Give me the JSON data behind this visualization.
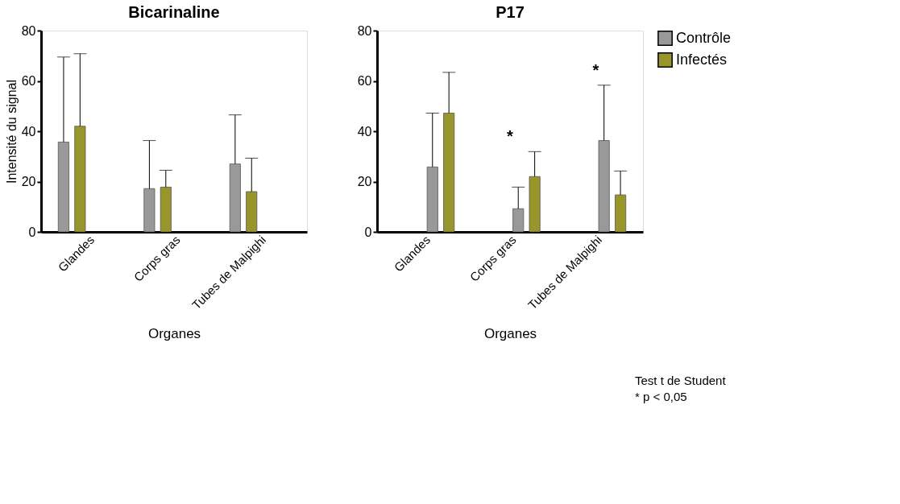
{
  "chart_data": [
    {
      "type": "bar",
      "title": "Bicarinaline",
      "xlabel": "Organes",
      "ylabel": "Intensité du signal",
      "categories": [
        "Glandes",
        "Corps gras",
        "Tubes de Malpighi"
      ],
      "ylim": [
        0,
        80
      ],
      "yticks": [
        0,
        20,
        40,
        60,
        80
      ],
      "grid": false,
      "legend": false,
      "series": [
        {
          "color": "#999999",
          "values": [
            35.7,
            17.2,
            27
          ],
          "errors": [
            [
              35.7,
              69.5
            ],
            [
              17.2,
              36.3
            ],
            [
              27,
              46.5
            ]
          ]
        },
        {
          "color": "#98962b",
          "values": [
            42,
            17.8,
            16
          ],
          "errors": [
            [
              42,
              70.8
            ],
            [
              17.8,
              24.5
            ],
            [
              16,
              29.3
            ]
          ]
        }
      ]
    },
    {
      "type": "bar",
      "title": "P17",
      "xlabel": "Organes",
      "categories": [
        "Glandes",
        "Corps gras",
        "Tubes de Malpighi"
      ],
      "ylim": [
        0,
        80
      ],
      "yticks": [
        0,
        20,
        40,
        60,
        80
      ],
      "grid": false,
      "legend": "top right",
      "series": [
        {
          "name": "Contrôle",
          "color": "#999999",
          "values": [
            25.8,
            9.2,
            36.3
          ],
          "errors": [
            [
              25.8,
              47.2
            ],
            [
              9.2,
              17.8
            ],
            [
              36.3,
              58.3
            ]
          ]
        },
        {
          "name": "Infectés",
          "color": "#98962b",
          "values": [
            47.2,
            22,
            14.7
          ],
          "errors": [
            [
              47.2,
              63.4
            ],
            [
              22,
              31.9
            ],
            [
              14.7,
              24.2
            ]
          ]
        }
      ],
      "annotations": [
        "*",
        "*",
        "Test t de Student",
        "* p < 0,05"
      ]
    }
  ]
}
